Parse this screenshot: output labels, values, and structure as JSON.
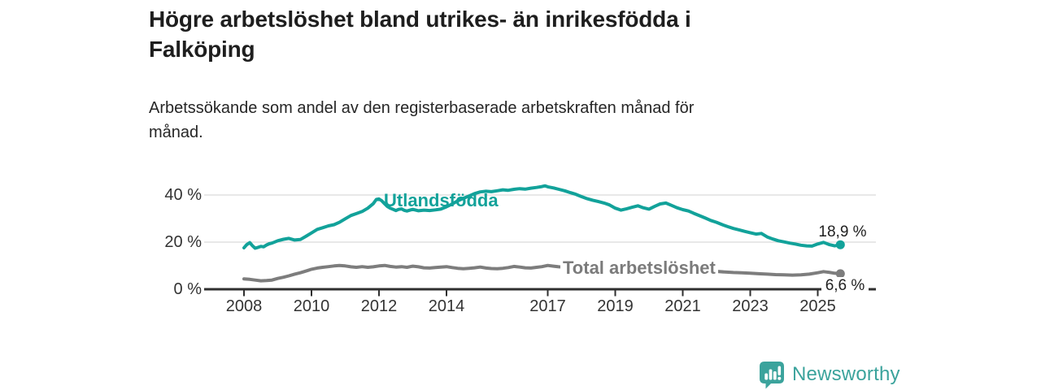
{
  "header": {
    "title_lines": [
      "Högre arbetslöshet bland utrikes- än inrikesfödda i",
      "Falköping"
    ],
    "subtitle_lines": [
      "Arbetssökande som andel av den registerbaserade arbetskraften månad för",
      "månad."
    ]
  },
  "chart_data": {
    "type": "line",
    "title": "Högre arbetslöshet bland utrikes- än inrikesfödda i Falköping",
    "subtitle": "Arbetssökande som andel av den registerbaserade arbetskraften månad för månad.",
    "xlabel": "",
    "ylabel": "",
    "xlim": [
      2007.3,
      2026.7
    ],
    "ylim": [
      0,
      45
    ],
    "grid": "horizontal",
    "grid_color": "#d9d9d9",
    "axis_color": "#2f2f2f",
    "y_ticks": [
      {
        "value": 0,
        "label": "0 %"
      },
      {
        "value": 20,
        "label": "20 %"
      },
      {
        "value": 40,
        "label": "40 %"
      }
    ],
    "x_ticks": [
      {
        "value": 2008,
        "label": "2008"
      },
      {
        "value": 2010,
        "label": "2010"
      },
      {
        "value": 2012,
        "label": "2012"
      },
      {
        "value": 2014,
        "label": "2014"
      },
      {
        "value": 2017,
        "label": "2017"
      },
      {
        "value": 2019,
        "label": "2019"
      },
      {
        "value": 2021,
        "label": "2021"
      },
      {
        "value": 2023,
        "label": "2023"
      },
      {
        "value": 2025,
        "label": "2025"
      }
    ],
    "series": [
      {
        "name": "Utlandsfödda",
        "color": "#12a29a",
        "end_value": 18.9,
        "end_label": "18,9 %",
        "points": [
          [
            2008.0,
            17.6
          ],
          [
            2008.08,
            18.9
          ],
          [
            2008.17,
            19.8
          ],
          [
            2008.25,
            18.5
          ],
          [
            2008.33,
            17.4
          ],
          [
            2008.42,
            17.8
          ],
          [
            2008.5,
            18.2
          ],
          [
            2008.58,
            18.0
          ],
          [
            2008.67,
            18.8
          ],
          [
            2008.75,
            19.3
          ],
          [
            2008.83,
            19.6
          ],
          [
            2008.92,
            20.1
          ],
          [
            2009.0,
            20.6
          ],
          [
            2009.17,
            21.2
          ],
          [
            2009.33,
            21.6
          ],
          [
            2009.5,
            20.9
          ],
          [
            2009.67,
            21.1
          ],
          [
            2009.83,
            22.4
          ],
          [
            2010.0,
            23.9
          ],
          [
            2010.17,
            25.4
          ],
          [
            2010.33,
            26.1
          ],
          [
            2010.5,
            26.9
          ],
          [
            2010.67,
            27.4
          ],
          [
            2010.83,
            28.4
          ],
          [
            2011.0,
            29.9
          ],
          [
            2011.17,
            31.3
          ],
          [
            2011.33,
            32.1
          ],
          [
            2011.5,
            33.0
          ],
          [
            2011.67,
            34.4
          ],
          [
            2011.83,
            36.3
          ],
          [
            2011.92,
            38.1
          ],
          [
            2012.0,
            38.3
          ],
          [
            2012.08,
            37.6
          ],
          [
            2012.17,
            36.2
          ],
          [
            2012.25,
            35.1
          ],
          [
            2012.33,
            34.4
          ],
          [
            2012.42,
            33.9
          ],
          [
            2012.5,
            33.4
          ],
          [
            2012.58,
            33.9
          ],
          [
            2012.67,
            34.1
          ],
          [
            2012.75,
            33.5
          ],
          [
            2012.83,
            33.2
          ],
          [
            2012.92,
            33.6
          ],
          [
            2013.0,
            33.9
          ],
          [
            2013.17,
            33.3
          ],
          [
            2013.33,
            33.6
          ],
          [
            2013.5,
            33.4
          ],
          [
            2013.67,
            33.7
          ],
          [
            2013.83,
            34.0
          ],
          [
            2014.0,
            35.0
          ],
          [
            2014.17,
            36.2
          ],
          [
            2014.33,
            37.5
          ],
          [
            2014.5,
            38.6
          ],
          [
            2014.67,
            39.6
          ],
          [
            2014.83,
            40.6
          ],
          [
            2015.0,
            41.3
          ],
          [
            2015.17,
            41.6
          ],
          [
            2015.33,
            41.4
          ],
          [
            2015.5,
            41.8
          ],
          [
            2015.67,
            42.2
          ],
          [
            2015.83,
            42.0
          ],
          [
            2016.0,
            42.4
          ],
          [
            2016.17,
            42.7
          ],
          [
            2016.33,
            42.5
          ],
          [
            2016.5,
            42.9
          ],
          [
            2016.67,
            43.2
          ],
          [
            2016.83,
            43.6
          ],
          [
            2016.92,
            43.9
          ],
          [
            2017.0,
            43.5
          ],
          [
            2017.17,
            43.0
          ],
          [
            2017.33,
            42.4
          ],
          [
            2017.5,
            41.8
          ],
          [
            2017.67,
            41.0
          ],
          [
            2017.83,
            40.3
          ],
          [
            2018.0,
            39.3
          ],
          [
            2018.17,
            38.4
          ],
          [
            2018.33,
            37.8
          ],
          [
            2018.5,
            37.2
          ],
          [
            2018.67,
            36.6
          ],
          [
            2018.83,
            35.8
          ],
          [
            2019.0,
            34.4
          ],
          [
            2019.17,
            33.6
          ],
          [
            2019.33,
            34.1
          ],
          [
            2019.5,
            34.8
          ],
          [
            2019.67,
            35.4
          ],
          [
            2019.83,
            34.6
          ],
          [
            2020.0,
            34.0
          ],
          [
            2020.17,
            35.2
          ],
          [
            2020.33,
            36.2
          ],
          [
            2020.5,
            36.6
          ],
          [
            2020.67,
            35.6
          ],
          [
            2020.83,
            34.6
          ],
          [
            2021.0,
            33.8
          ],
          [
            2021.17,
            33.2
          ],
          [
            2021.33,
            32.2
          ],
          [
            2021.5,
            31.2
          ],
          [
            2021.67,
            30.2
          ],
          [
            2021.83,
            29.2
          ],
          [
            2022.0,
            28.4
          ],
          [
            2022.17,
            27.4
          ],
          [
            2022.33,
            26.6
          ],
          [
            2022.5,
            25.8
          ],
          [
            2022.67,
            25.2
          ],
          [
            2022.83,
            24.6
          ],
          [
            2023.0,
            24.0
          ],
          [
            2023.17,
            23.4
          ],
          [
            2023.33,
            23.7
          ],
          [
            2023.5,
            22.2
          ],
          [
            2023.67,
            21.3
          ],
          [
            2023.83,
            20.6
          ],
          [
            2024.0,
            20.1
          ],
          [
            2024.17,
            19.6
          ],
          [
            2024.33,
            19.2
          ],
          [
            2024.5,
            18.7
          ],
          [
            2024.67,
            18.4
          ],
          [
            2024.83,
            18.3
          ],
          [
            2025.0,
            19.2
          ],
          [
            2025.17,
            19.9
          ],
          [
            2025.33,
            19.0
          ],
          [
            2025.5,
            18.4
          ],
          [
            2025.67,
            18.9
          ]
        ]
      },
      {
        "name": "Total arbetslöshet",
        "color": "#7d7d7d",
        "end_value": 6.6,
        "end_label": "6,6 %",
        "points": [
          [
            2008.0,
            4.4
          ],
          [
            2008.17,
            4.2
          ],
          [
            2008.33,
            3.9
          ],
          [
            2008.5,
            3.6
          ],
          [
            2008.67,
            3.7
          ],
          [
            2008.83,
            3.9
          ],
          [
            2009.0,
            4.6
          ],
          [
            2009.17,
            5.1
          ],
          [
            2009.33,
            5.7
          ],
          [
            2009.5,
            6.4
          ],
          [
            2009.67,
            7.0
          ],
          [
            2009.83,
            7.7
          ],
          [
            2010.0,
            8.5
          ],
          [
            2010.17,
            9.0
          ],
          [
            2010.33,
            9.3
          ],
          [
            2010.5,
            9.6
          ],
          [
            2010.67,
            9.9
          ],
          [
            2010.83,
            10.1
          ],
          [
            2011.0,
            9.9
          ],
          [
            2011.17,
            9.5
          ],
          [
            2011.33,
            9.3
          ],
          [
            2011.5,
            9.6
          ],
          [
            2011.67,
            9.3
          ],
          [
            2011.83,
            9.5
          ],
          [
            2012.0,
            9.9
          ],
          [
            2012.17,
            10.1
          ],
          [
            2012.33,
            9.7
          ],
          [
            2012.5,
            9.4
          ],
          [
            2012.67,
            9.6
          ],
          [
            2012.83,
            9.3
          ],
          [
            2013.0,
            9.8
          ],
          [
            2013.17,
            9.5
          ],
          [
            2013.33,
            9.1
          ],
          [
            2013.5,
            9.0
          ],
          [
            2013.67,
            9.2
          ],
          [
            2013.83,
            9.4
          ],
          [
            2014.0,
            9.6
          ],
          [
            2014.17,
            9.2
          ],
          [
            2014.33,
            8.9
          ],
          [
            2014.5,
            8.7
          ],
          [
            2014.67,
            8.9
          ],
          [
            2014.83,
            9.1
          ],
          [
            2015.0,
            9.4
          ],
          [
            2015.17,
            9.0
          ],
          [
            2015.33,
            8.8
          ],
          [
            2015.5,
            8.7
          ],
          [
            2015.67,
            8.9
          ],
          [
            2015.83,
            9.2
          ],
          [
            2016.0,
            9.7
          ],
          [
            2016.17,
            9.4
          ],
          [
            2016.33,
            9.1
          ],
          [
            2016.5,
            9.0
          ],
          [
            2016.67,
            9.3
          ],
          [
            2016.83,
            9.6
          ],
          [
            2017.0,
            10.1
          ],
          [
            2017.17,
            9.8
          ],
          [
            2017.33,
            9.5
          ],
          [
            2017.5,
            9.4
          ],
          [
            2017.67,
            9.2
          ],
          [
            2017.83,
            9.1
          ],
          [
            2018.0,
            9.0
          ],
          [
            2018.25,
            8.8
          ],
          [
            2018.5,
            8.7
          ],
          [
            2018.75,
            8.6
          ],
          [
            2019.0,
            8.5
          ],
          [
            2019.25,
            8.4
          ],
          [
            2019.5,
            8.5
          ],
          [
            2019.75,
            8.7
          ],
          [
            2020.0,
            8.9
          ],
          [
            2020.25,
            9.3
          ],
          [
            2020.5,
            9.5
          ],
          [
            2020.75,
            9.2
          ],
          [
            2021.0,
            8.9
          ],
          [
            2021.25,
            8.5
          ],
          [
            2021.5,
            8.2
          ],
          [
            2021.75,
            7.9
          ],
          [
            2022.0,
            7.6
          ],
          [
            2022.25,
            7.3
          ],
          [
            2022.5,
            7.1
          ],
          [
            2022.75,
            7.0
          ],
          [
            2023.0,
            6.8
          ],
          [
            2023.25,
            6.6
          ],
          [
            2023.5,
            6.4
          ],
          [
            2023.75,
            6.2
          ],
          [
            2024.0,
            6.1
          ],
          [
            2024.25,
            6.0
          ],
          [
            2024.5,
            6.1
          ],
          [
            2024.75,
            6.4
          ],
          [
            2025.0,
            7.0
          ],
          [
            2025.17,
            7.5
          ],
          [
            2025.33,
            7.2
          ],
          [
            2025.5,
            6.8
          ],
          [
            2025.67,
            6.6
          ]
        ]
      }
    ]
  },
  "footer": {
    "brand": "Newsworthy",
    "brand_color": "#3ba39c",
    "logo_icon": "newsworthy-chart-speech-bubble-icon"
  }
}
